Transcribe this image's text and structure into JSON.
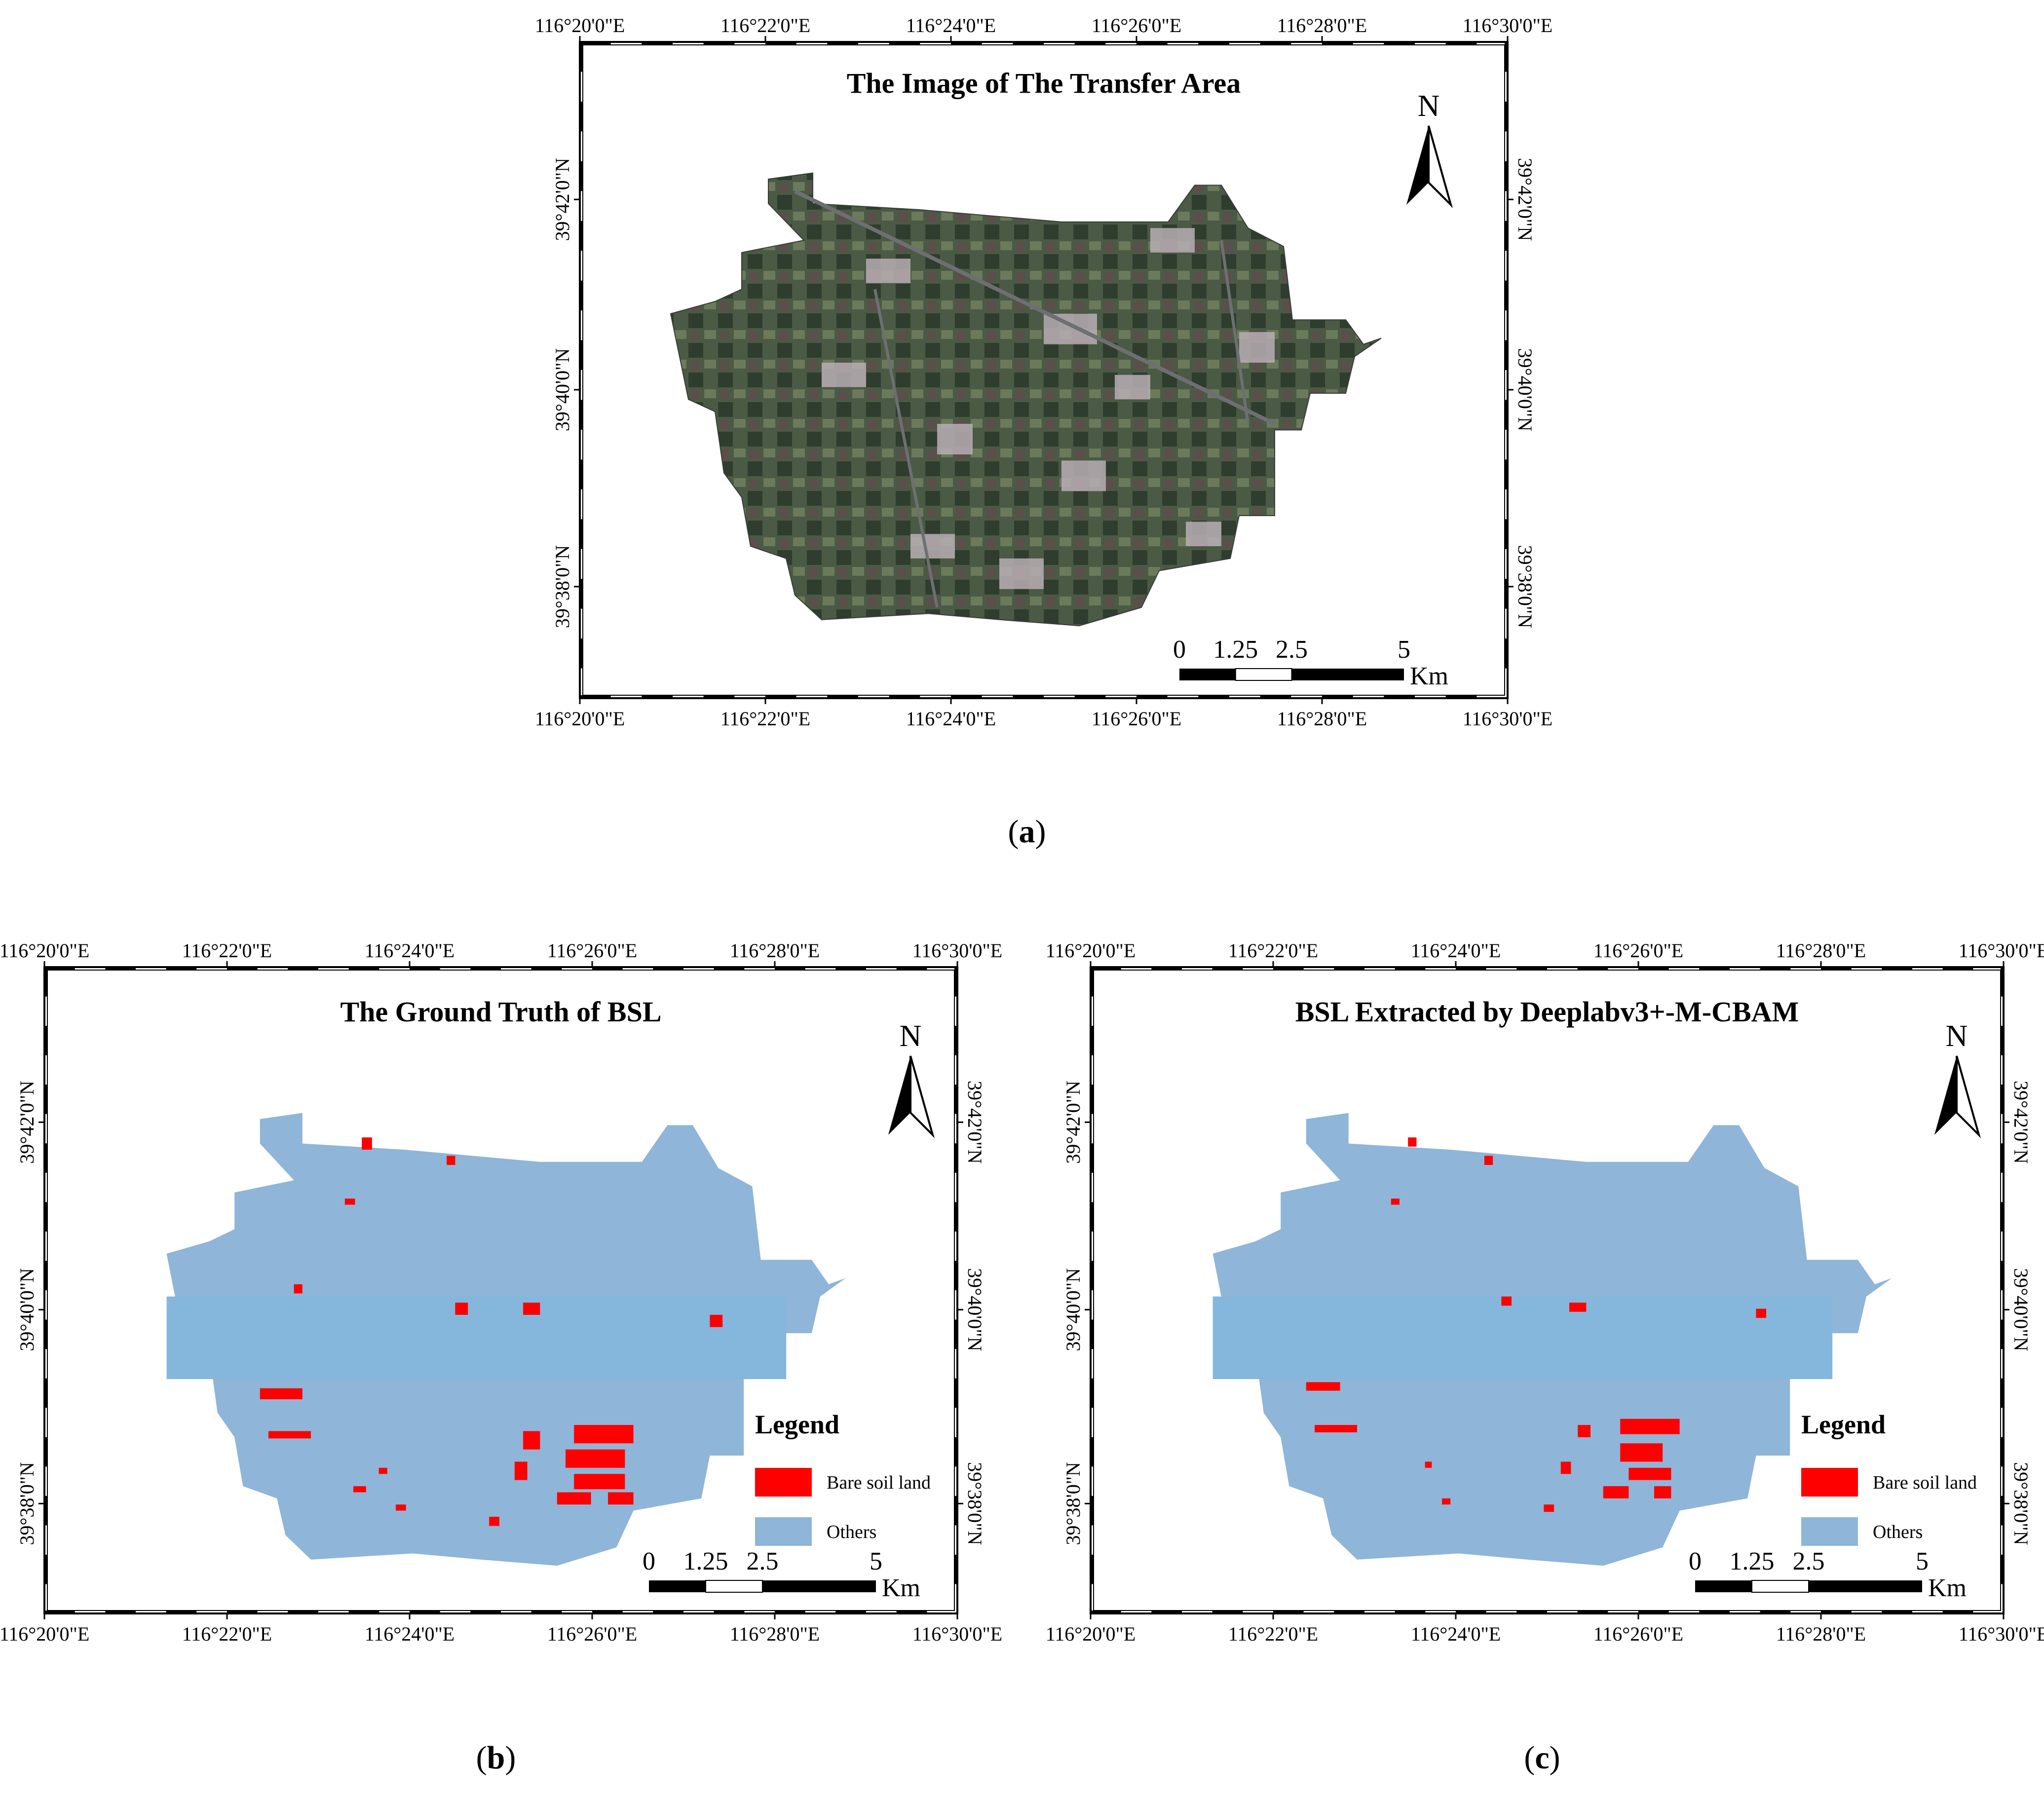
{
  "panels": [
    {
      "id": "a",
      "title": "The Image of The Transfer Area",
      "caption_letter": "a",
      "north_label": "N",
      "lon_ticks": [
        "116°20'0\"E",
        "116°22'0\"E",
        "116°24'0\"E",
        "116°26'0\"E",
        "116°28'0\"E",
        "116°30'0\"E"
      ],
      "lat_ticks": [
        "39°42'0\"N",
        "39°40'0\"N",
        "39°38'0\"N"
      ],
      "scale_labels": [
        "0",
        "1.25",
        "2.5",
        "5"
      ],
      "scale_unit": "Km"
    },
    {
      "id": "b",
      "title": "The Ground Truth of BSL",
      "caption_letter": "b",
      "north_label": "N",
      "lon_ticks": [
        "116°20'0\"E",
        "116°22'0\"E",
        "116°24'0\"E",
        "116°26'0\"E",
        "116°28'0\"E",
        "116°30'0\"E"
      ],
      "lat_ticks": [
        "39°42'0\"N",
        "39°40'0\"N",
        "39°38'0\"N"
      ],
      "scale_labels": [
        "0",
        "1.25",
        "2.5",
        "5"
      ],
      "scale_unit": "Km",
      "legend": {
        "title": "Legend",
        "items": [
          {
            "label": "Bare soil land",
            "color": "#ff0000"
          },
          {
            "label": "Others",
            "color": "#8fb5d8"
          }
        ]
      }
    },
    {
      "id": "c",
      "title": "BSL Extracted by Deeplabv3+-M-CBAM",
      "caption_letter": "c",
      "north_label": "N",
      "lon_ticks": [
        "116°20'0\"E",
        "116°22'0\"E",
        "116°24'0\"E",
        "116°26'0\"E",
        "116°28'0\"E",
        "116°30'0\"E"
      ],
      "lat_ticks": [
        "39°42'0\"N",
        "39°40'0\"N",
        "39°38'0\"N"
      ],
      "scale_labels": [
        "0",
        "1.25",
        "2.5",
        "5"
      ],
      "scale_unit": "Km",
      "legend": {
        "title": "Legend",
        "items": [
          {
            "label": "Bare soil land",
            "color": "#ff0000"
          },
          {
            "label": "Others",
            "color": "#8fb5d8"
          }
        ]
      }
    }
  ],
  "colors": {
    "frame": "#000000",
    "area_fill": "#8fb5d8",
    "band_fill": "#85b7dc",
    "bsl_red": "#ff0000",
    "imagery_base": "#4a5a45",
    "imagery_dark": "#2f3d2e",
    "imagery_settlement": "#b8aeb4",
    "imagery_road": "#6d6f72"
  }
}
